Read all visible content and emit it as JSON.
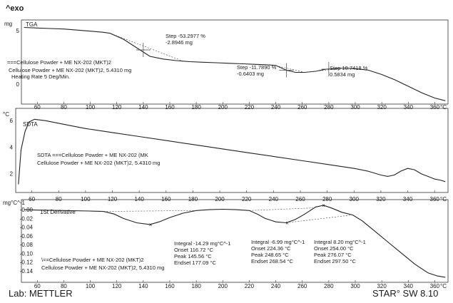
{
  "header": {
    "exo_label": "^exo"
  },
  "footer": {
    "lab": "Lab: METTLER",
    "software": "STAR° SW 8.10"
  },
  "chart_data": [
    {
      "type": "line",
      "panel": "tga",
      "unit_label": "mg",
      "curve_label": "TGA",
      "xlim": [
        48,
        370
      ],
      "ylim": [
        -1.6,
        5.6
      ],
      "y_ticks": [
        5,
        0
      ],
      "x_ticks": [
        60,
        80,
        100,
        120,
        140,
        160,
        180,
        200,
        220,
        240,
        260,
        280,
        300,
        320,
        340,
        360
      ],
      "x_unit": "°C",
      "series": [
        {
          "x": [
            50,
            60,
            70,
            80,
            90,
            100,
            110,
            115,
            125,
            135,
            145,
            155,
            165,
            175,
            185,
            195,
            205,
            215,
            225,
            235,
            240,
            248,
            255,
            262,
            270,
            278,
            285,
            292,
            300,
            310,
            320,
            330,
            340,
            350,
            360,
            368
          ],
          "y": [
            5.3,
            5.25,
            5.2,
            5.15,
            5.05,
            4.95,
            4.85,
            4.75,
            4.2,
            3.4,
            2.6,
            2.35,
            2.2,
            2.1,
            2.05,
            2.0,
            1.95,
            1.9,
            1.85,
            1.8,
            1.75,
            1.3,
            1.1,
            1.1,
            1.2,
            1.4,
            1.45,
            1.5,
            1.45,
            1.3,
            0.9,
            0.4,
            -0.2,
            -0.8,
            -1.3,
            -1.55
          ]
        }
      ],
      "annotations": [
        {
          "lines": [
            "Step   -53.2977 %",
            "-2.8946 mg"
          ]
        },
        {
          "lines": [
            "Step   -11.7890 %",
            "-0.6403 mg"
          ]
        },
        {
          "lines": [
            "Step   10.7418 %",
            "0.5834 mg"
          ]
        }
      ],
      "sample": {
        "line1": "===Cellulose Powder + ME NX-202 (MKT)2",
        "line2": "Cellulose Powder + ME NX-202 (MKT)2, 5.4310 mg",
        "line3": "Heating Rate 5 Deg/Min."
      }
    },
    {
      "type": "line",
      "panel": "sdta",
      "unit_label": "°C",
      "curve_label": "SDTA",
      "xlim": [
        48,
        370
      ],
      "ylim": [
        0.8,
        6.6
      ],
      "y_ticks": [
        6,
        4,
        2
      ],
      "x_ticks": [
        60,
        80,
        100,
        120,
        140,
        160,
        180,
        200,
        220,
        240,
        260,
        280,
        300,
        320,
        340,
        360
      ],
      "x_unit": "°C",
      "series": [
        {
          "x": [
            50,
            52,
            55,
            58,
            62,
            70,
            80,
            100,
            120,
            140,
            160,
            180,
            200,
            220,
            240,
            260,
            280,
            300,
            310,
            320,
            325,
            330,
            335,
            340,
            345,
            350,
            355,
            360,
            365,
            368
          ],
          "y": [
            1.2,
            3.8,
            5.2,
            5.9,
            6.1,
            6.0,
            5.8,
            5.4,
            5.1,
            4.8,
            4.5,
            4.2,
            3.9,
            3.6,
            3.3,
            3.0,
            2.7,
            2.4,
            2.2,
            1.9,
            1.8,
            1.9,
            2.2,
            2.4,
            2.3,
            2.0,
            1.8,
            1.6,
            1.5,
            1.4
          ]
        }
      ],
      "sample": {
        "line1": "SDTA ===Cellulose Powder + ME NX-202 (MK",
        "line2": "Cellulose Powder + ME NX-202 (MKT)2, 5.4310 mg"
      }
    },
    {
      "type": "line",
      "panel": "derivative",
      "unit_label": "mg°C^-1",
      "curve_label": "1St Derivative",
      "xlim": [
        48,
        370
      ],
      "ylim": [
        -0.16,
        0.01
      ],
      "y_ticks": [
        -0.0,
        -0.02,
        -0.04,
        -0.06,
        -0.08,
        -0.1,
        -0.12,
        -0.14
      ],
      "y_tick_labels": [
        "-0.00",
        "-0.02",
        "-0.04",
        "-0.06",
        "-0.08",
        "-0.10",
        "-0.12",
        "-0.14"
      ],
      "x_ticks": [
        60,
        80,
        100,
        120,
        140,
        160,
        180,
        200,
        220,
        240,
        260,
        280,
        300,
        320,
        340,
        360
      ],
      "x_unit": "°C",
      "series": [
        {
          "x": [
            50,
            60,
            80,
            100,
            110,
            118,
            125,
            135,
            145,
            152,
            160,
            170,
            180,
            190,
            200,
            210,
            220,
            226,
            232,
            240,
            248,
            255,
            262,
            270,
            276,
            282,
            290,
            298,
            305,
            315,
            325,
            335,
            345,
            355,
            362,
            368
          ],
          "y": [
            0.0,
            -0.001,
            -0.002,
            -0.003,
            -0.004,
            -0.01,
            -0.02,
            -0.03,
            -0.034,
            -0.028,
            -0.018,
            -0.008,
            -0.002,
            0.0,
            0.001,
            0.0,
            -0.002,
            -0.01,
            -0.02,
            -0.028,
            -0.03,
            -0.022,
            -0.01,
            0.006,
            0.01,
            0.004,
            -0.006,
            -0.012,
            -0.025,
            -0.05,
            -0.075,
            -0.1,
            -0.125,
            -0.145,
            -0.152,
            -0.155
          ]
        }
      ],
      "annotations": [
        {
          "lines": [
            "Integral   -14.29 mg°C^-1",
            "Onset       116.72 °C",
            "Peak         145.56 °C",
            "Endset      177.09 °C"
          ]
        },
        {
          "lines": [
            "Integral   -6.99 mg°C^-1",
            "Onset       224.36 °C",
            "Peak         248.65 °C",
            "Endset      268.54 °C"
          ]
        },
        {
          "lines": [
            "Integral   8.20 mg°C^-1",
            "Onset       254.00 °C",
            "Peak         276.07 °C",
            "Endset      297.50 °C"
          ]
        }
      ],
      "sample": {
        "line1": "\\==Cellulose Powder + ME NX-202 (MKT)2",
        "line2": "Cellulose Powder + ME NX-202 (MKT)2, 5.4310 mg"
      }
    }
  ]
}
